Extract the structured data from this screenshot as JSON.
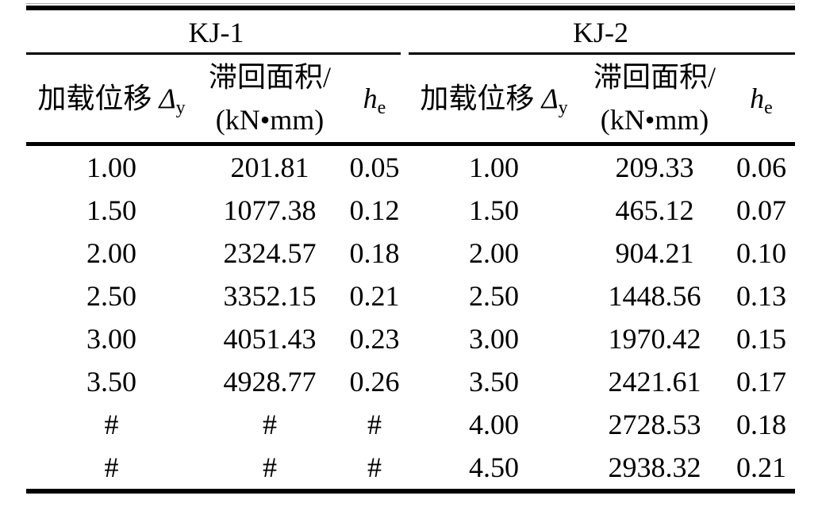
{
  "table": {
    "groups": [
      {
        "label": "KJ-1"
      },
      {
        "label": "KJ-2"
      }
    ],
    "columns": {
      "displacement": {
        "prefix": "加载位移",
        "symbol": "Δ",
        "subscript": "y"
      },
      "area": {
        "line1": "滞回面积/",
        "line2": "(kN•mm)"
      },
      "damping": {
        "symbol": "h",
        "subscript": "e"
      }
    },
    "placeholder": "#",
    "rows": [
      [
        "1.00",
        "201.81",
        "0.05",
        "1.00",
        "209.33",
        "0.06"
      ],
      [
        "1.50",
        "1077.38",
        "0.12",
        "1.50",
        "465.12",
        "0.07"
      ],
      [
        "2.00",
        "2324.57",
        "0.18",
        "2.00",
        "904.21",
        "0.10"
      ],
      [
        "2.50",
        "3352.15",
        "0.21",
        "2.50",
        "1448.56",
        "0.13"
      ],
      [
        "3.00",
        "4051.43",
        "0.23",
        "3.00",
        "1970.42",
        "0.15"
      ],
      [
        "3.50",
        "4928.77",
        "0.26",
        "3.50",
        "2421.61",
        "0.17"
      ],
      [
        "#",
        "#",
        "#",
        "4.00",
        "2728.53",
        "0.18"
      ],
      [
        "#",
        "#",
        "#",
        "4.50",
        "2938.32",
        "0.21"
      ]
    ]
  }
}
